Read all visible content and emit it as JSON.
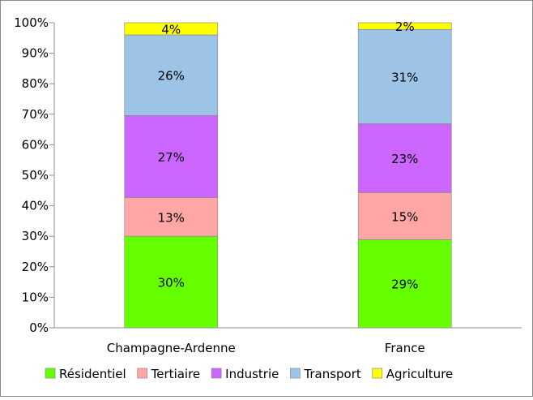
{
  "chart_data": {
    "type": "bar",
    "stacked": true,
    "percent": true,
    "categories": [
      "Champagne-Ardenne",
      "France"
    ],
    "series": [
      {
        "name": "Résidentiel",
        "color": "#66ff00",
        "values": [
          30.0,
          28.9
        ],
        "labels": [
          "30%",
          "29%"
        ]
      },
      {
        "name": "Tertiaire",
        "color": "#ffa6a6",
        "values": [
          12.7,
          15.4
        ],
        "labels": [
          "13%",
          "15%"
        ]
      },
      {
        "name": "Industrie",
        "color": "#cc66ff",
        "values": [
          26.9,
          22.6
        ],
        "labels": [
          "27%",
          "23%"
        ]
      },
      {
        "name": "Transport",
        "color": "#9dc3e6",
        "values": [
          26.4,
          30.9
        ],
        "labels": [
          "26%",
          "31%"
        ]
      },
      {
        "name": "Agriculture",
        "color": "#ffff00",
        "values": [
          4.0,
          2.2
        ],
        "labels": [
          "4%",
          "2%"
        ]
      }
    ],
    "yticks": [
      "0%",
      "10%",
      "20%",
      "30%",
      "40%",
      "50%",
      "60%",
      "70%",
      "80%",
      "90%",
      "100%"
    ],
    "ylim": [
      0,
      100
    ],
    "grid": false,
    "legend": "bottom"
  }
}
